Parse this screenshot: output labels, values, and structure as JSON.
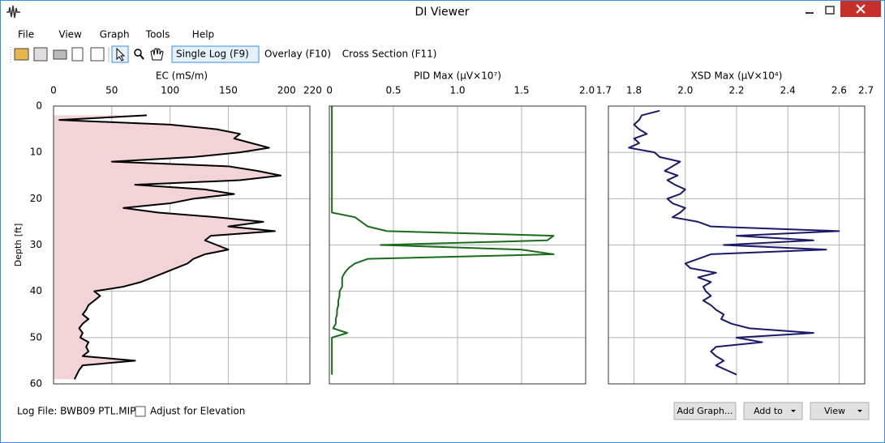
{
  "window": {
    "title": "DI Viewer"
  },
  "menu": [
    "File",
    "View",
    "Graph",
    "Tools",
    "Help"
  ],
  "toolbar": {
    "modes": [
      "Single Log (F9)",
      "Overlay (F10)",
      "Cross Section (F11)"
    ],
    "active_mode": 0
  },
  "depth_axis": {
    "label": "Depth [ft]",
    "ylim": [
      0,
      60
    ],
    "inverted": true,
    "yticks": [
      0,
      10,
      20,
      30,
      40,
      50,
      60
    ],
    "depth": [
      0,
      1,
      2,
      3,
      4,
      5,
      6,
      7,
      8,
      9,
      10,
      11,
      12,
      13,
      14,
      15,
      16,
      17,
      18,
      19,
      20,
      21,
      22,
      23,
      24,
      25,
      26,
      27,
      28,
      29,
      30,
      31,
      32,
      33,
      34,
      35,
      36,
      37,
      38,
      39,
      40,
      41,
      42,
      43,
      44,
      45,
      46,
      47,
      48,
      49,
      50,
      51,
      52,
      53,
      54,
      55,
      56,
      57,
      58,
      59
    ]
  },
  "chart_data": [
    {
      "type": "line",
      "xlabel": "EC (mS/m)",
      "xlim": [
        0,
        220
      ],
      "xticks": [
        0,
        50,
        100,
        150,
        200,
        220
      ],
      "grid": true,
      "color": "#000000",
      "fill_color": "#f2d3d6",
      "values": [
        null,
        null,
        80,
        5,
        100,
        140,
        160,
        155,
        170,
        185,
        160,
        120,
        50,
        150,
        175,
        195,
        160,
        70,
        130,
        155,
        120,
        100,
        60,
        90,
        140,
        180,
        150,
        190,
        135,
        130,
        140,
        150,
        130,
        120,
        115,
        105,
        95,
        85,
        75,
        60,
        35,
        40,
        35,
        30,
        28,
        25,
        30,
        25,
        22,
        25,
        23,
        30,
        28,
        30,
        25,
        70,
        25,
        22,
        20,
        18
      ]
    },
    {
      "type": "line",
      "xlabel": "PID Max (µV×10⁷)",
      "xlim": [
        0,
        2
      ],
      "xticks": [
        0,
        0.5,
        {
          "value": 1,
          "label": "1.0"
        },
        1.5,
        {
          "value": 2,
          "label": "2.0"
        }
      ],
      "grid": true,
      "color": "#1a6b1a",
      "values": [
        0.02,
        0.02,
        0.02,
        0.02,
        0.02,
        0.02,
        0.02,
        0.02,
        0.02,
        0.02,
        0.02,
        0.02,
        0.02,
        0.02,
        0.02,
        0.02,
        0.02,
        0.02,
        0.02,
        0.02,
        0.02,
        0.02,
        0.02,
        0.02,
        0.2,
        0.25,
        0.3,
        0.45,
        1.75,
        1.7,
        0.4,
        1.5,
        1.75,
        0.3,
        0.2,
        0.15,
        0.12,
        0.1,
        0.1,
        0.1,
        0.08,
        0.08,
        0.07,
        0.07,
        0.06,
        0.06,
        0.05,
        0.05,
        0.03,
        0.14,
        0.02,
        0.02,
        0.02,
        0.02,
        0.02,
        0.02,
        0.02,
        0.02,
        0.02,
        null
      ]
    },
    {
      "type": "line",
      "xlabel": "XSD Max (µV×10⁴)",
      "xlim": [
        1.7,
        2.7
      ],
      "xticks": [
        1.7,
        1.8,
        {
          "value": 2,
          "label": "2.0"
        },
        2.2,
        2.4,
        2.6,
        2.7
      ],
      "grid": true,
      "color": "#1a1a6b",
      "values": [
        null,
        1.9,
        1.83,
        1.82,
        1.8,
        1.82,
        1.85,
        1.8,
        1.82,
        1.78,
        1.88,
        1.9,
        1.98,
        1.95,
        1.92,
        1.97,
        1.93,
        1.96,
        2.0,
        1.98,
        1.93,
        1.95,
        2.0,
        1.98,
        1.95,
        2.05,
        2.1,
        2.6,
        2.2,
        2.5,
        2.15,
        2.55,
        2.1,
        2.05,
        2.0,
        2.02,
        2.12,
        2.05,
        2.1,
        2.07,
        2.08,
        2.1,
        2.07,
        2.1,
        2.12,
        2.15,
        2.14,
        2.18,
        2.25,
        2.5,
        2.2,
        2.3,
        2.12,
        2.1,
        2.12,
        2.15,
        2.12,
        2.16,
        2.2,
        null
      ]
    }
  ],
  "footer": {
    "log_file": "Log File: BWB09 PTL.MIP",
    "checkbox": "Adjust for Elevation",
    "checked": false,
    "buttons": [
      "Add Graph...",
      "Add to",
      "View"
    ],
    "dropdown_buttons": [
      1,
      2
    ]
  }
}
